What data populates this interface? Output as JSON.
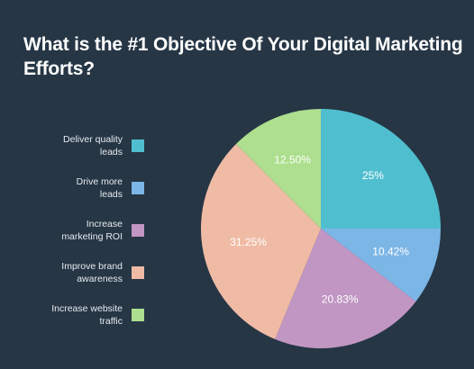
{
  "chart_data": {
    "type": "pie",
    "title": "What is the #1 Objective Of Your Digital Marketing Efforts?",
    "slices": [
      {
        "label": "Deliver quality\nleads",
        "value": 25,
        "display": "25%",
        "color": "#4fbfcf"
      },
      {
        "label": "Drive more\nleads",
        "value": 10.42,
        "display": "10.42%",
        "color": "#7cb6e6"
      },
      {
        "label": "Increase\nmarketing ROI",
        "value": 20.83,
        "display": "20.83%",
        "color": "#c196c3"
      },
      {
        "label": "Improve brand\nawareness",
        "value": 31.25,
        "display": "31.25%",
        "color": "#efbba5"
      },
      {
        "label": "Increase website\ntraffic",
        "value": 12.5,
        "display": "12.50%",
        "color": "#addf8e"
      }
    ],
    "start_angle": "12 o'clock",
    "direction": "clockwise",
    "legend_position": "left"
  }
}
